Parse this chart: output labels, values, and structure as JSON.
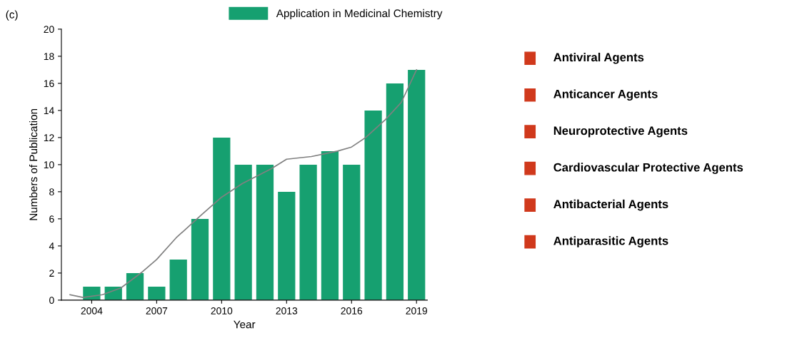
{
  "chart_data": {
    "type": "bar",
    "xlabel": "Year",
    "ylabel": "Numbers of Publication",
    "x": [
      2004,
      2005,
      2006,
      2007,
      2008,
      2009,
      2010,
      2011,
      2012,
      2013,
      2014,
      2015,
      2016,
      2017,
      2018,
      2019
    ],
    "series": [
      {
        "name": "Application in Medicinal Chemistry",
        "color": "#16a070",
        "values": [
          1,
          1,
          2,
          1,
          3,
          6,
          12,
          10,
          10,
          8,
          10,
          11,
          10,
          14,
          16,
          17
        ]
      },
      {
        "type": "line",
        "color": "#808080",
        "x": [
          2003.0,
          2003.6,
          2004.5,
          2005.35,
          2006.35,
          2007.0,
          2007.9,
          2009.0,
          2010.0,
          2010.95,
          2012.3,
          2013.0,
          2014.15,
          2015.35,
          2016.0,
          2016.65,
          2017.55,
          2018.3,
          2019.0
        ],
        "values": [
          0.4,
          0.2,
          0.4,
          0.9,
          2.1,
          3.0,
          4.6,
          6.2,
          7.6,
          8.6,
          9.7,
          10.4,
          10.6,
          11.0,
          11.3,
          12.0,
          13.3,
          14.6,
          17.0
        ]
      }
    ],
    "xlim": [
      2002.6,
      2019.5
    ],
    "xticks": [
      2004,
      2007,
      2010,
      2013,
      2016,
      2019
    ],
    "ylim": [
      0,
      20
    ],
    "yticks": [
      0,
      2,
      4,
      6,
      8,
      10,
      12,
      14,
      16,
      18,
      20
    ],
    "grid": false,
    "legend": "top",
    "annotations": [
      "(c)",
      "Antiviral Agents",
      "Anticancer Agents",
      "Neuroprotective Agents",
      "Cardiovascular Protective Agents",
      "Antibacterial Agents",
      "Antiparasitic Agents"
    ]
  }
}
